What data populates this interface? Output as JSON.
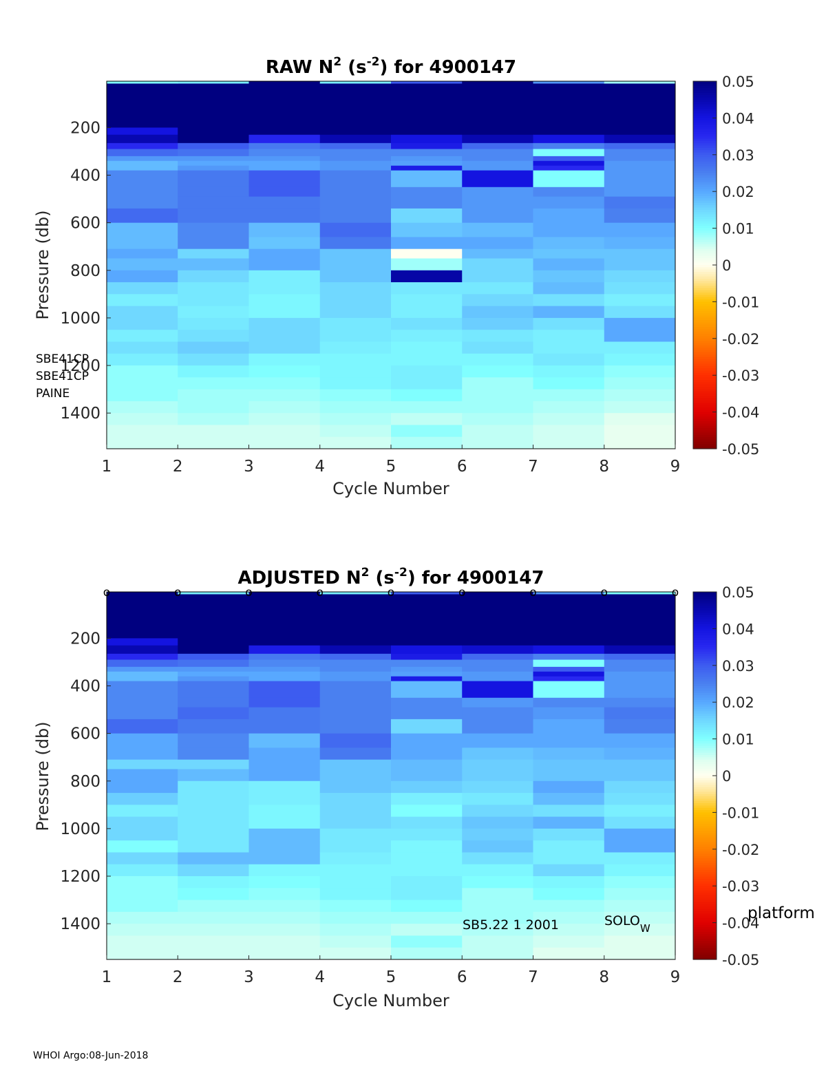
{
  "footer": "WHOI Argo:08-Jun-2018",
  "colormap": {
    "stops": [
      [
        -0.05,
        "#800000"
      ],
      [
        -0.04,
        "#e00000"
      ],
      [
        -0.03,
        "#ff3000"
      ],
      [
        -0.02,
        "#ff8000"
      ],
      [
        -0.01,
        "#ffc000"
      ],
      [
        -0.004,
        "#ffe8a0"
      ],
      [
        0.0,
        "#fffff0"
      ],
      [
        0.004,
        "#e0fff0"
      ],
      [
        0.01,
        "#80ffff"
      ],
      [
        0.015,
        "#70d8ff"
      ],
      [
        0.02,
        "#58a8ff"
      ],
      [
        0.025,
        "#4a80f0"
      ],
      [
        0.03,
        "#3d5cf0"
      ],
      [
        0.035,
        "#2828f0"
      ],
      [
        0.04,
        "#1414e0"
      ],
      [
        0.045,
        "#0808b0"
      ],
      [
        0.05,
        "#000080"
      ]
    ]
  },
  "chart_data": [
    {
      "type": "heatmap",
      "title_parts": [
        "RAW N",
        "2",
        " (s",
        "-2",
        ") for 4900147"
      ],
      "xlabel": "Cycle Number",
      "ylabel": "Pressure (db)",
      "xlim": [
        1,
        9
      ],
      "ylim": [
        1550,
        5
      ],
      "xticks": [
        "1",
        "2",
        "3",
        "4",
        "5",
        "6",
        "7",
        "8",
        "9"
      ],
      "yticks": [
        200,
        400,
        600,
        800,
        1000,
        1200,
        1400
      ],
      "colorbar": {
        "clim": [
          -0.05,
          0.05
        ],
        "ticks": [
          "0.05",
          "0.04",
          "0.03",
          "0.02",
          "0.01",
          "0",
          "-0.01",
          "-0.02",
          "-0.03",
          "-0.04",
          "-0.05"
        ]
      },
      "annotations": [
        {
          "text": "SBE41CP",
          "role": "sensor-label-1"
        },
        {
          "text": "SBE41CP",
          "role": "sensor-label-2"
        },
        {
          "text": "PAINE",
          "role": "sensor-label-3"
        }
      ],
      "pressure_edges": [
        5,
        15,
        40,
        200,
        230,
        265,
        290,
        320,
        340,
        360,
        380,
        450,
        490,
        540,
        600,
        660,
        710,
        750,
        800,
        850,
        900,
        950,
        1000,
        1050,
        1100,
        1150,
        1200,
        1250,
        1300,
        1350,
        1400,
        1450,
        1500,
        1550
      ],
      "cycles": [
        {
          "x0": 1,
          "x1": 2,
          "values": [
            0.01,
            0.05,
            0.05,
            0.04,
            0.045,
            0.035,
            0.028,
            0.022,
            0.018,
            0.018,
            0.024,
            0.024,
            0.024,
            0.028,
            0.018,
            0.018,
            0.02,
            0.018,
            0.02,
            0.015,
            0.012,
            0.015,
            0.015,
            0.012,
            0.014,
            0.012,
            0.009,
            0.009,
            0.009,
            0.007,
            0.006,
            0.005,
            0.005
          ]
        },
        {
          "x0": 2,
          "x1": 3,
          "values": [
            0.012,
            0.05,
            0.05,
            0.05,
            0.05,
            0.03,
            0.027,
            0.022,
            0.02,
            0.022,
            0.026,
            0.026,
            0.026,
            0.026,
            0.024,
            0.024,
            0.015,
            0.018,
            0.015,
            0.013,
            0.013,
            0.012,
            0.013,
            0.014,
            0.016,
            0.014,
            0.011,
            0.009,
            0.008,
            0.008,
            0.007,
            0.005,
            0.005
          ]
        },
        {
          "x0": 3,
          "x1": 4,
          "values": [
            0.05,
            0.05,
            0.05,
            0.05,
            0.036,
            0.026,
            0.024,
            0.022,
            0.02,
            0.02,
            0.03,
            0.03,
            0.026,
            0.026,
            0.018,
            0.017,
            0.02,
            0.02,
            0.012,
            0.012,
            0.011,
            0.011,
            0.015,
            0.015,
            0.015,
            0.011,
            0.01,
            0.009,
            0.008,
            0.007,
            0.006,
            0.005,
            0.005
          ]
        },
        {
          "x0": 4,
          "x1": 5,
          "values": [
            0.012,
            0.05,
            0.05,
            0.05,
            0.045,
            0.028,
            0.024,
            0.024,
            0.022,
            0.022,
            0.025,
            0.025,
            0.025,
            0.025,
            0.028,
            0.026,
            0.017,
            0.017,
            0.017,
            0.015,
            0.015,
            0.015,
            0.013,
            0.013,
            0.012,
            0.011,
            0.011,
            0.011,
            0.009,
            0.008,
            0.007,
            0.006,
            0.005
          ]
        },
        {
          "x0": 5,
          "x1": 6,
          "values": [
            0.03,
            0.05,
            0.05,
            0.05,
            0.04,
            0.038,
            0.024,
            0.022,
            0.021,
            0.038,
            0.018,
            0.024,
            0.024,
            0.015,
            0.017,
            0.02,
            0.0,
            0.008,
            0.046,
            0.013,
            0.012,
            0.012,
            0.014,
            0.012,
            0.011,
            0.011,
            0.012,
            0.012,
            0.01,
            0.008,
            0.006,
            0.009,
            0.007
          ]
        },
        {
          "x0": 6,
          "x1": 7,
          "values": [
            0.05,
            0.05,
            0.05,
            0.05,
            0.045,
            0.028,
            0.024,
            0.024,
            0.022,
            0.022,
            0.04,
            0.022,
            0.022,
            0.022,
            0.018,
            0.02,
            0.018,
            0.015,
            0.015,
            0.013,
            0.015,
            0.017,
            0.016,
            0.013,
            0.014,
            0.011,
            0.01,
            0.008,
            0.008,
            0.008,
            0.007,
            0.006,
            0.006
          ]
        },
        {
          "x0": 7,
          "x1": 8,
          "values": [
            0.022,
            0.05,
            0.05,
            0.05,
            0.04,
            0.025,
            0.01,
            0.03,
            0.04,
            0.035,
            0.01,
            0.024,
            0.022,
            0.02,
            0.02,
            0.018,
            0.017,
            0.019,
            0.017,
            0.018,
            0.014,
            0.019,
            0.014,
            0.012,
            0.012,
            0.013,
            0.011,
            0.01,
            0.008,
            0.007,
            0.006,
            0.005,
            0.005
          ]
        },
        {
          "x0": 8,
          "x1": 9,
          "values": [
            0.008,
            0.05,
            0.05,
            0.05,
            0.045,
            0.028,
            0.024,
            0.024,
            0.022,
            0.022,
            0.022,
            0.022,
            0.026,
            0.025,
            0.02,
            0.019,
            0.017,
            0.017,
            0.015,
            0.014,
            0.012,
            0.014,
            0.02,
            0.02,
            0.012,
            0.011,
            0.009,
            0.008,
            0.007,
            0.006,
            0.004,
            0.003,
            0.003
          ]
        }
      ]
    },
    {
      "type": "heatmap",
      "title_parts": [
        "ADJUSTED N",
        "2",
        " (s",
        "-2",
        ") for 4900147"
      ],
      "xlabel": "Cycle Number",
      "ylabel": "Pressure (db)",
      "xlim": [
        1,
        9
      ],
      "ylim": [
        1550,
        5
      ],
      "xticks": [
        "1",
        "2",
        "3",
        "4",
        "5",
        "6",
        "7",
        "8",
        "9"
      ],
      "yticks": [
        200,
        400,
        600,
        800,
        1000,
        1200,
        1400
      ],
      "colorbar": {
        "clim": [
          -0.05,
          0.05
        ],
        "ticks": [
          "0.05",
          "0.04",
          "0.03",
          "0.02",
          "0.01",
          "0",
          "-0.01",
          "-0.02",
          "-0.03",
          "-0.04",
          "-0.05"
        ],
        "label": "platform"
      },
      "markers": {
        "symbol": "o",
        "x": [
          1,
          2,
          3,
          4,
          5,
          6,
          7,
          8,
          9
        ],
        "pressure": 5
      },
      "annotations": [
        {
          "text": "SB5.22  1 2001",
          "role": "instrument-info"
        },
        {
          "text": "SOLO",
          "sub": "W",
          "role": "platform-type"
        }
      ],
      "pressure_edges": [
        5,
        15,
        40,
        200,
        230,
        265,
        290,
        320,
        340,
        360,
        380,
        450,
        490,
        540,
        600,
        660,
        710,
        750,
        800,
        850,
        900,
        950,
        1000,
        1050,
        1100,
        1150,
        1200,
        1250,
        1300,
        1350,
        1400,
        1450,
        1500,
        1550
      ],
      "cycles": [
        {
          "x0": 1,
          "x1": 2,
          "values": [
            0.05,
            0.05,
            0.05,
            0.04,
            0.045,
            0.035,
            0.028,
            0.022,
            0.018,
            0.018,
            0.024,
            0.024,
            0.024,
            0.028,
            0.02,
            0.02,
            0.015,
            0.02,
            0.02,
            0.016,
            0.012,
            0.015,
            0.015,
            0.01,
            0.015,
            0.012,
            0.009,
            0.009,
            0.009,
            0.007,
            0.006,
            0.005,
            0.005
          ]
        },
        {
          "x0": 2,
          "x1": 3,
          "values": [
            0.012,
            0.05,
            0.05,
            0.05,
            0.05,
            0.03,
            0.027,
            0.022,
            0.02,
            0.022,
            0.026,
            0.026,
            0.028,
            0.026,
            0.024,
            0.024,
            0.015,
            0.018,
            0.013,
            0.013,
            0.013,
            0.013,
            0.013,
            0.013,
            0.018,
            0.015,
            0.011,
            0.01,
            0.008,
            0.007,
            0.006,
            0.005,
            0.005
          ]
        },
        {
          "x0": 3,
          "x1": 4,
          "values": [
            0.05,
            0.05,
            0.05,
            0.05,
            0.038,
            0.026,
            0.024,
            0.022,
            0.02,
            0.02,
            0.03,
            0.03,
            0.026,
            0.026,
            0.018,
            0.02,
            0.02,
            0.02,
            0.012,
            0.012,
            0.011,
            0.011,
            0.018,
            0.018,
            0.018,
            0.011,
            0.01,
            0.009,
            0.008,
            0.007,
            0.006,
            0.005,
            0.005
          ]
        },
        {
          "x0": 4,
          "x1": 5,
          "values": [
            0.012,
            0.05,
            0.05,
            0.05,
            0.045,
            0.028,
            0.024,
            0.024,
            0.022,
            0.022,
            0.025,
            0.025,
            0.025,
            0.025,
            0.028,
            0.026,
            0.017,
            0.017,
            0.017,
            0.015,
            0.015,
            0.015,
            0.013,
            0.013,
            0.012,
            0.011,
            0.011,
            0.011,
            0.009,
            0.008,
            0.007,
            0.006,
            0.005
          ]
        },
        {
          "x0": 5,
          "x1": 6,
          "values": [
            0.03,
            0.05,
            0.05,
            0.05,
            0.04,
            0.038,
            0.024,
            0.022,
            0.021,
            0.038,
            0.018,
            0.024,
            0.024,
            0.015,
            0.02,
            0.02,
            0.018,
            0.018,
            0.016,
            0.012,
            0.01,
            0.014,
            0.013,
            0.011,
            0.011,
            0.011,
            0.012,
            0.012,
            0.01,
            0.008,
            0.006,
            0.009,
            0.007
          ]
        },
        {
          "x0": 6,
          "x1": 7,
          "values": [
            0.05,
            0.05,
            0.05,
            0.05,
            0.042,
            0.028,
            0.024,
            0.024,
            0.022,
            0.022,
            0.04,
            0.022,
            0.024,
            0.024,
            0.02,
            0.017,
            0.016,
            0.016,
            0.015,
            0.013,
            0.015,
            0.017,
            0.016,
            0.017,
            0.014,
            0.011,
            0.01,
            0.008,
            0.008,
            0.008,
            0.007,
            0.006,
            0.006
          ]
        },
        {
          "x0": 7,
          "x1": 8,
          "values": [
            0.022,
            0.05,
            0.05,
            0.05,
            0.04,
            0.025,
            0.01,
            0.03,
            0.04,
            0.035,
            0.01,
            0.024,
            0.022,
            0.02,
            0.02,
            0.018,
            0.017,
            0.017,
            0.02,
            0.018,
            0.014,
            0.019,
            0.014,
            0.012,
            0.012,
            0.015,
            0.011,
            0.01,
            0.008,
            0.007,
            0.006,
            0.005,
            0.004
          ]
        },
        {
          "x0": 8,
          "x1": 9,
          "values": [
            0.01,
            0.05,
            0.05,
            0.05,
            0.045,
            0.028,
            0.024,
            0.024,
            0.022,
            0.022,
            0.022,
            0.024,
            0.026,
            0.025,
            0.02,
            0.019,
            0.017,
            0.017,
            0.015,
            0.014,
            0.012,
            0.014,
            0.02,
            0.02,
            0.012,
            0.011,
            0.009,
            0.008,
            0.007,
            0.006,
            0.005,
            0.004,
            0.004
          ]
        }
      ]
    }
  ]
}
